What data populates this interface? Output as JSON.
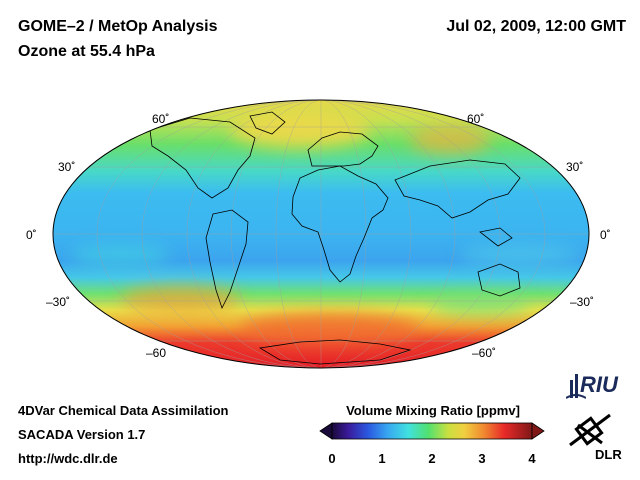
{
  "header": {
    "title_line1": "GOME–2 / MetOp Analysis",
    "title_line2": "Ozone at 55.4 hPa",
    "datetime": "Jul 02, 2009, 12:00 GMT"
  },
  "map": {
    "projection": "mollweide",
    "lat_labels_left": [
      "60˚",
      "30˚",
      "0˚",
      "–30˚",
      "–60"
    ],
    "lat_labels_right": [
      "60˚",
      "30˚",
      "0˚",
      "–30˚",
      "–60˚"
    ],
    "colors": {
      "low": "#2a6ae0",
      "blue": "#3ab0f0",
      "cyan": "#40e0e0",
      "green": "#60e070",
      "yellow": "#e8e050",
      "orange": "#f09030",
      "red": "#e81e2a"
    }
  },
  "footer": {
    "line1": "4DVar Chemical Data Assimilation",
    "line2": "SACADA Version 1.7",
    "line3": "http://wdc.dlr.de"
  },
  "colorbar": {
    "title": "Volume Mixing Ratio [ppmv]",
    "ticks": [
      "0",
      "1",
      "2",
      "3",
      "4"
    ],
    "range": [
      0,
      4
    ]
  },
  "logos": {
    "riu": "RIU",
    "dlr": "DLR"
  }
}
